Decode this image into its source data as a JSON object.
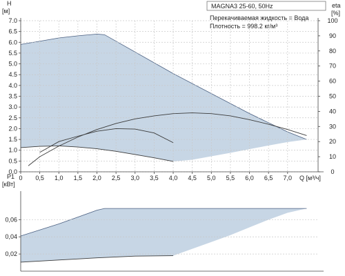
{
  "model_label": "MAGNA3 25-60, 50Hz",
  "notes": {
    "line1": "Перекачиваемая жидкость = Вода",
    "line2": "Плотность = 998.2 кг/м³"
  },
  "colors": {
    "envelope_fill": "#c7d6e5",
    "envelope_line": "#4a5f80",
    "curve": "#3a3a3a",
    "grid": "#c8c8c8"
  },
  "chart_data": [
    {
      "type": "area",
      "panel": "head",
      "xlabel": "Q [м³/ч]",
      "ylabel": "H",
      "ylabel_unit": "[м]",
      "y2label": "eta",
      "y2label_unit": "[%]",
      "xlim": [
        0,
        7.8
      ],
      "ylim": [
        0,
        7.0
      ],
      "y2lim": [
        0,
        100
      ],
      "x_ticks": [
        0,
        0.5,
        1.0,
        1.5,
        2.0,
        2.5,
        3.0,
        3.5,
        4.0,
        4.5,
        5.0,
        5.5,
        6.0,
        6.5,
        7.0
      ],
      "x_tick_labels": [
        "0",
        "0,5",
        "1,0",
        "1,5",
        "2,0",
        "2,5",
        "3,0",
        "3,5",
        "4,0",
        "4,5",
        "5,0",
        "5,5",
        "6,0",
        "6,5",
        "7,0"
      ],
      "y_ticks": [
        0,
        0.5,
        1.0,
        1.5,
        2.0,
        2.5,
        3.0,
        3.5,
        4.0,
        4.5,
        5.0,
        5.5,
        6.0,
        6.5,
        7.0
      ],
      "y_tick_labels": [
        "0.0",
        "0.5",
        "1.0",
        "1.5",
        "2.0",
        "2.5",
        "3.0",
        "3.5",
        "4.0",
        "4.5",
        "5.0",
        "5.5",
        "6.0",
        "6.5",
        "7.0"
      ],
      "y2_ticks": [
        0,
        10,
        20,
        30,
        40,
        50,
        60,
        70,
        80,
        90,
        100
      ],
      "y2_tick_labels": [
        "0",
        "10",
        "20",
        "30",
        "40",
        "50",
        "60",
        "70",
        "80",
        "90",
        "100"
      ],
      "grid": true,
      "envelope_upper": [
        [
          0,
          5.9
        ],
        [
          0.5,
          6.05
        ],
        [
          1.0,
          6.2
        ],
        [
          1.5,
          6.3
        ],
        [
          2.0,
          6.38
        ],
        [
          2.2,
          6.35
        ],
        [
          4.0,
          4.55
        ],
        [
          6.0,
          2.7
        ],
        [
          7.0,
          1.85
        ],
        [
          7.5,
          1.5
        ]
      ],
      "envelope_lower": [
        [
          0,
          1.12
        ],
        [
          0.5,
          1.18
        ],
        [
          1.0,
          1.2
        ],
        [
          1.5,
          1.15
        ],
        [
          2.0,
          1.07
        ],
        [
          2.5,
          0.95
        ],
        [
          3.0,
          0.8
        ],
        [
          3.5,
          0.65
        ],
        [
          4.0,
          0.48
        ],
        [
          4.5,
          0.56
        ],
        [
          5.0,
          0.72
        ],
        [
          5.5,
          0.88
        ],
        [
          6.0,
          1.05
        ],
        [
          6.5,
          1.22
        ],
        [
          7.0,
          1.38
        ],
        [
          7.5,
          1.5
        ]
      ],
      "series": [
        {
          "points": [
            [
              0,
              1.12
            ],
            [
              0.5,
              1.18
            ],
            [
              1.0,
              1.2
            ],
            [
              1.5,
              1.15
            ],
            [
              2.0,
              1.07
            ],
            [
              2.5,
              0.95
            ],
            [
              3.0,
              0.8
            ],
            [
              3.5,
              0.65
            ],
            [
              4.0,
              0.48
            ]
          ],
          "axis": "H"
        },
        {
          "points": [
            [
              0.5,
              0.9
            ],
            [
              1.0,
              1.4
            ],
            [
              1.5,
              1.65
            ],
            [
              2.0,
              1.88
            ],
            [
              2.5,
              2.0
            ],
            [
              3.0,
              1.98
            ],
            [
              3.5,
              1.8
            ],
            [
              4.0,
              1.35
            ]
          ],
          "axis": "H"
        },
        {
          "points": [
            [
              0.2,
              4
            ],
            [
              0.5,
              10
            ],
            [
              1.0,
              17
            ],
            [
              1.5,
              23
            ],
            [
              2.0,
              28
            ],
            [
              2.5,
              32
            ],
            [
              3.0,
              35
            ],
            [
              3.5,
              37
            ],
            [
              4.0,
              38.5
            ],
            [
              4.5,
              39
            ],
            [
              5.0,
              38.5
            ],
            [
              5.5,
              37
            ],
            [
              6.0,
              34.5
            ],
            [
              6.5,
              31.5
            ],
            [
              7.0,
              28
            ],
            [
              7.5,
              24
            ]
          ],
          "axis": "eta"
        }
      ]
    },
    {
      "type": "area",
      "panel": "power",
      "xlabel": "",
      "ylabel": "P1",
      "ylabel_unit": "[кВт]",
      "xlim": [
        0,
        7.8
      ],
      "ylim": [
        0,
        0.09
      ],
      "y_ticks": [
        0.02,
        0.04,
        0.06
      ],
      "y_tick_labels": [
        "0,02",
        "0,04",
        "0,06"
      ],
      "grid": true,
      "envelope_upper": [
        [
          0,
          0.041
        ],
        [
          0.5,
          0.048
        ],
        [
          1.0,
          0.055
        ],
        [
          1.5,
          0.063
        ],
        [
          2.0,
          0.071
        ],
        [
          2.2,
          0.073
        ],
        [
          7.5,
          0.073
        ]
      ],
      "envelope_lower": [
        [
          0,
          0.0105
        ],
        [
          1.0,
          0.013
        ],
        [
          2.0,
          0.0155
        ],
        [
          3.0,
          0.0175
        ],
        [
          4.0,
          0.018
        ],
        [
          4.5,
          0.026
        ],
        [
          5.0,
          0.034
        ],
        [
          5.5,
          0.042
        ],
        [
          6.0,
          0.051
        ],
        [
          6.5,
          0.06
        ],
        [
          7.0,
          0.068
        ],
        [
          7.5,
          0.073
        ]
      ],
      "series": [
        {
          "points": [
            [
              0,
              0.0105
            ],
            [
              1.0,
              0.013
            ],
            [
              2.0,
              0.0155
            ],
            [
              3.0,
              0.0175
            ],
            [
              4.0,
              0.018
            ]
          ]
        }
      ]
    }
  ]
}
